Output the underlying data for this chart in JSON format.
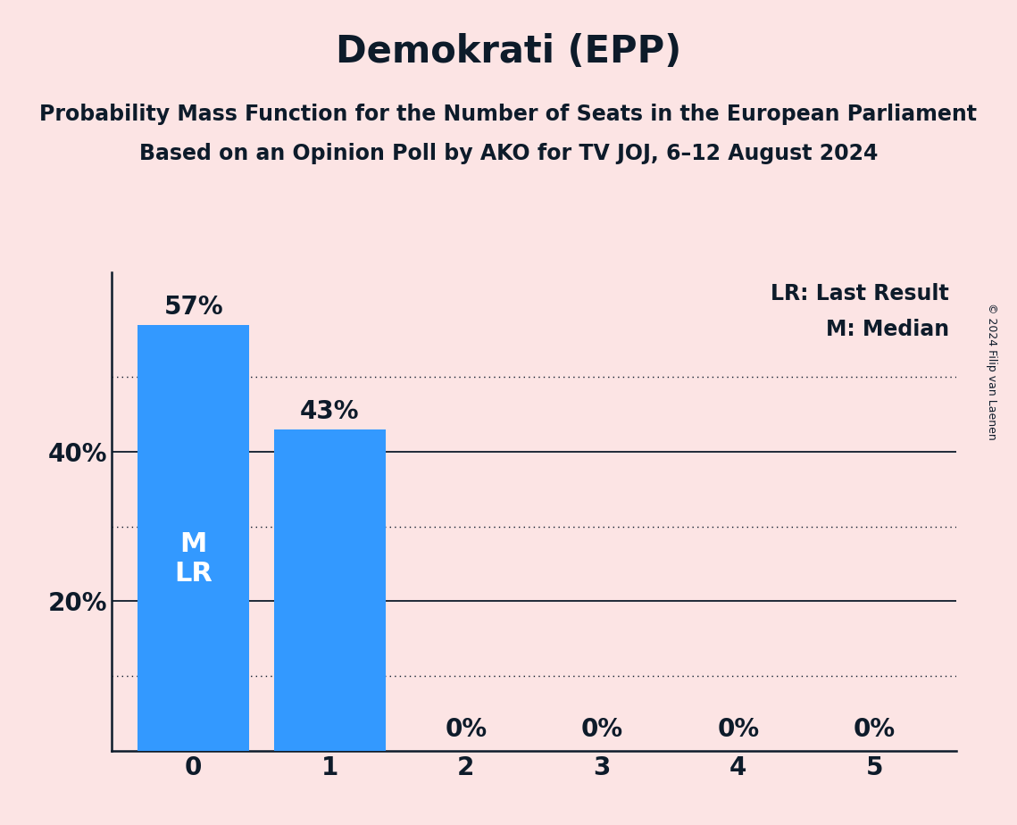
{
  "title": "Demokrati (EPP)",
  "subtitle1": "Probability Mass Function for the Number of Seats in the European Parliament",
  "subtitle2": "Based on an Opinion Poll by AKO for TV JOJ, 6–12 August 2024",
  "copyright": "© 2024 Filip van Laenen",
  "categories": [
    0,
    1,
    2,
    3,
    4,
    5
  ],
  "values": [
    0.57,
    0.43,
    0.0,
    0.0,
    0.0,
    0.0
  ],
  "bar_color": "#3399ff",
  "background_color": "#fce4e4",
  "text_color": "#0d1b2a",
  "bar_label_color": "#ffffff",
  "bar_labels": [
    "57%",
    "43%",
    "0%",
    "0%",
    "0%",
    "0%"
  ],
  "median_bar": 0,
  "last_result_bar": 0,
  "legend_lr": "LR: Last Result",
  "legend_m": "M: Median",
  "ylim": [
    0,
    0.64
  ],
  "solid_yticks": [
    0.2,
    0.4
  ],
  "dotted_yticks": [
    0.1,
    0.3,
    0.5
  ],
  "title_fontsize": 30,
  "subtitle_fontsize": 17,
  "axis_label_fontsize": 20,
  "bar_label_fontsize": 20,
  "inner_label_fontsize": 22,
  "legend_fontsize": 17,
  "copyright_fontsize": 9
}
